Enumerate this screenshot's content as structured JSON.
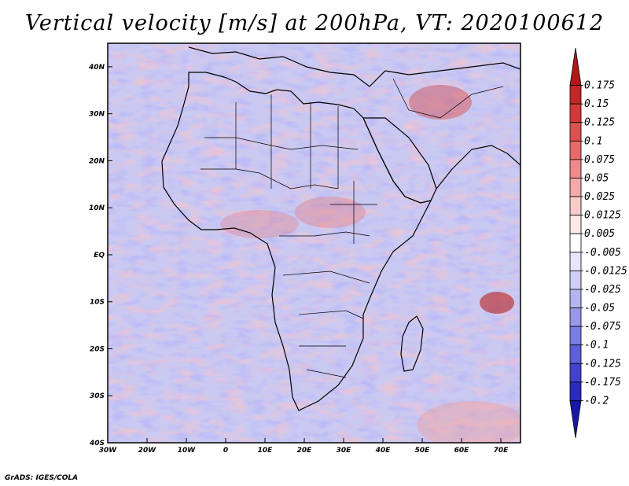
{
  "title": "Vertical velocity [m/s] at 200hPa, VT: 2020100612",
  "credit": "GrADS: IGES/COLA",
  "map": {
    "variable": "Vertical velocity",
    "units": "m/s",
    "level": "200hPa",
    "valid_time": "2020100612",
    "lon_range": [
      -30,
      75
    ],
    "lat_range": [
      -40,
      45
    ],
    "x_tick_labels": [
      "30W",
      "20W",
      "10W",
      "0",
      "10E",
      "20E",
      "30E",
      "40E",
      "50E",
      "60E",
      "70E"
    ],
    "x_tick_values": [
      -30,
      -20,
      -10,
      0,
      10,
      20,
      30,
      40,
      50,
      60,
      70
    ],
    "y_tick_labels": [
      "40N",
      "30N",
      "20N",
      "10N",
      "EQ",
      "10S",
      "20S",
      "30S",
      "40S"
    ],
    "y_tick_values": [
      40,
      30,
      20,
      10,
      0,
      -10,
      -20,
      -30,
      -40
    ]
  },
  "colorbar": {
    "labels": [
      "0.175",
      "0.15",
      "0.125",
      "0.1",
      "0.075",
      "0.05",
      "0.025",
      "0.0125",
      "0.005",
      "-0.005",
      "-0.0125",
      "-0.025",
      "-0.05",
      "-0.075",
      "-0.1",
      "-0.125",
      "-0.175",
      "-0.2"
    ],
    "colors": [
      "#b01818",
      "#c42626",
      "#d43838",
      "#de5050",
      "#e66a6a",
      "#ee8a8a",
      "#f4aaaa",
      "#f9cccc",
      "#fde8e8",
      "#ffffff",
      "#e6e6fb",
      "#cfcff6",
      "#b4b4f0",
      "#9898ea",
      "#7c7ce2",
      "#5f5fd8",
      "#4242cc",
      "#2a2ac0",
      "#1818a8"
    ]
  }
}
